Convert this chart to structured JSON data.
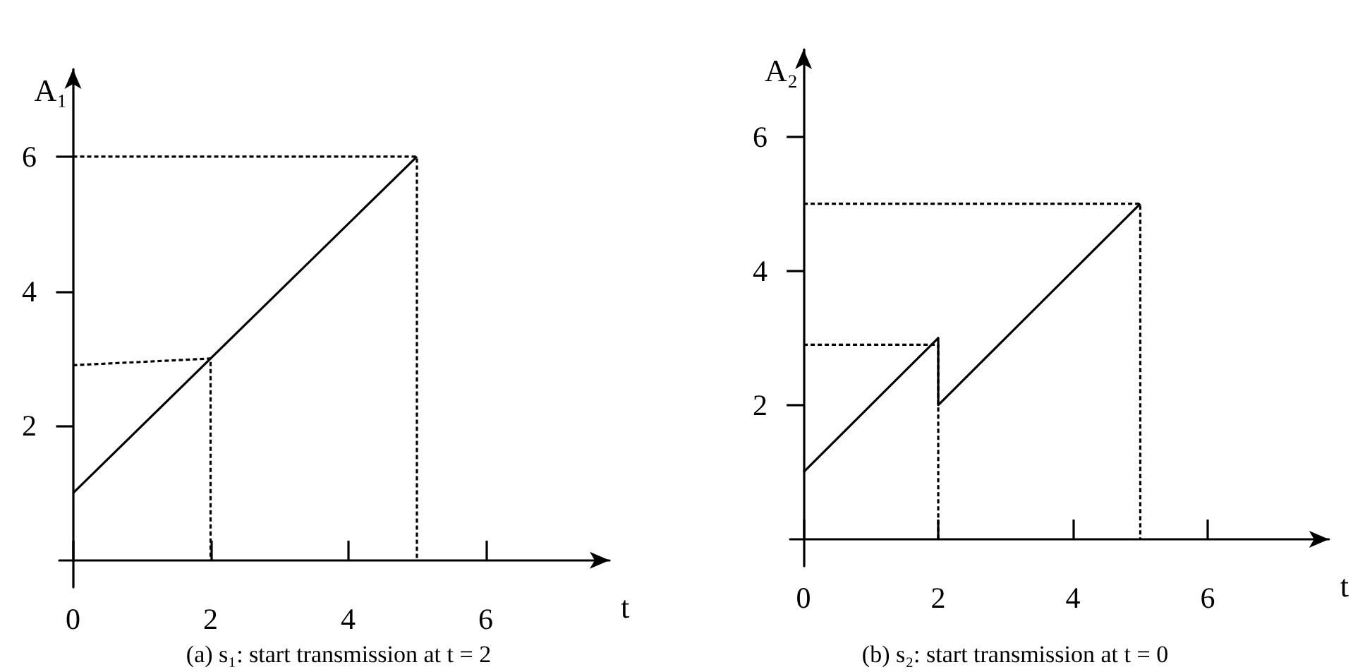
{
  "chart_data": [
    {
      "type": "line",
      "xlabel": "t",
      "ylabel": "A₁",
      "annotations": [
        "(a) s₁: start transmission at t = 2"
      ],
      "xlim": [
        -0.2,
        7.8
      ],
      "ylim": [
        -0.4,
        7.3
      ],
      "xticks": [
        0,
        2,
        4,
        6
      ],
      "yticks": [
        2,
        4,
        6
      ],
      "grid": false,
      "marker": "none",
      "series": [
        {
          "x": [
            0,
            5
          ],
          "values": [
            1,
            6
          ],
          "color": "#000000",
          "line_style": "solid"
        },
        {
          "x": [
            0,
            5,
            5
          ],
          "values": [
            6,
            6,
            0
          ],
          "color": "#000000",
          "line_style": "dotted"
        },
        {
          "x": [
            0,
            2,
            2
          ],
          "values": [
            2.9,
            3,
            0
          ],
          "color": "#000000",
          "line_style": "dotted"
        }
      ]
    },
    {
      "type": "line",
      "xlabel": "t",
      "ylabel": "A₂",
      "annotations": [
        "(b) s₂: start transmission at t = 0"
      ],
      "xlim": [
        -0.2,
        7.8
      ],
      "ylim": [
        -0.4,
        7.3
      ],
      "xticks": [
        0,
        2,
        4,
        6
      ],
      "yticks": [
        2,
        4,
        6
      ],
      "grid": false,
      "marker": "none",
      "series": [
        {
          "x": [
            0,
            2,
            2,
            5
          ],
          "values": [
            1,
            3,
            2,
            5
          ],
          "color": "#000000",
          "line_style": "solid"
        },
        {
          "x": [
            0,
            5,
            5
          ],
          "values": [
            5,
            5,
            0
          ],
          "color": "#000000",
          "line_style": "dotted"
        },
        {
          "x": [
            0,
            2,
            2
          ],
          "values": [
            2.9,
            2.9,
            0
          ],
          "color": "#000000",
          "line_style": "dotted"
        }
      ]
    }
  ]
}
